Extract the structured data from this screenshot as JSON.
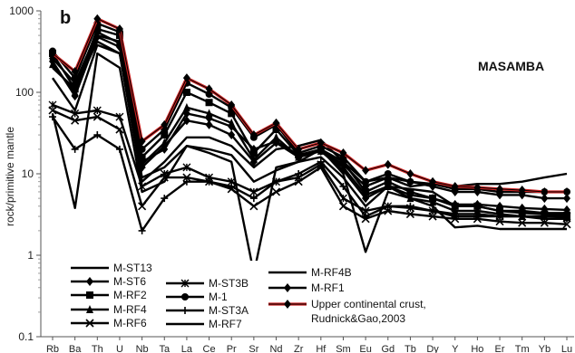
{
  "chart_data": {
    "type": "line",
    "panel_label": "b",
    "region_label": "MASAMBA",
    "ylabel": "rock/primitive mantle",
    "yscale": "log",
    "ylim": [
      0.1,
      1000
    ],
    "ytick_labels": [
      "0.1",
      "1",
      "10",
      "100",
      "1000"
    ],
    "yticks": [
      0.1,
      1,
      10,
      100,
      1000
    ],
    "categories": [
      "Rb",
      "Ba",
      "Th",
      "U",
      "Nb",
      "Ta",
      "La",
      "Ce",
      "Pr",
      "Sr",
      "Nd",
      "Zr",
      "Hf",
      "Sm",
      "Eu",
      "Gd",
      "Tb",
      "Dy",
      "Y",
      "Ho",
      "Er",
      "Tm",
      "Yb",
      "Lu"
    ],
    "series": [
      {
        "name": "M-ST13",
        "marker": "none",
        "color": "#000000",
        "values": [
          200,
          110,
          420,
          300,
          9,
          12,
          22,
          20,
          17,
          8,
          11,
          14,
          16,
          9,
          4,
          7,
          6.5,
          6,
          4,
          4,
          3.5,
          3.5,
          3.3,
          3.3
        ]
      },
      {
        "name": "M-ST6",
        "marker": "diamond",
        "color": "#000000",
        "values": [
          260,
          130,
          550,
          400,
          14,
          20,
          55,
          48,
          38,
          20,
          25,
          17,
          19,
          13,
          7,
          9,
          8,
          7,
          6,
          6,
          5.5,
          5.5,
          5,
          5
        ]
      },
      {
        "name": "M-RF2",
        "marker": "square",
        "color": "#000000",
        "values": [
          300,
          110,
          600,
          500,
          16,
          30,
          100,
          75,
          55,
          18,
          35,
          17,
          20,
          14,
          6,
          8,
          6,
          5,
          4,
          4,
          3.5,
          3.3,
          3.2,
          3.1
        ]
      },
      {
        "name": "M-RF4",
        "marker": "triangle",
        "color": "#000000",
        "values": [
          220,
          100,
          500,
          420,
          13,
          24,
          65,
          55,
          42,
          15,
          28,
          16,
          19,
          12,
          5.5,
          7,
          5,
          4.5,
          3.5,
          3.5,
          3.2,
          3,
          3,
          2.9
        ]
      },
      {
        "name": "M-RF6",
        "marker": "x",
        "color": "#000000",
        "values": [
          60,
          45,
          50,
          35,
          4,
          9,
          9,
          8,
          6.5,
          4,
          6,
          8,
          12,
          4,
          2.8,
          3.5,
          3.2,
          3,
          2.8,
          2.8,
          2.6,
          2.5,
          2.5,
          2.4
        ]
      },
      {
        "name": "M-ST3B",
        "marker": "asterisk",
        "color": "#000000",
        "values": [
          70,
          55,
          60,
          50,
          7,
          10,
          12,
          9,
          8,
          6,
          8,
          9,
          13,
          5,
          3.5,
          4,
          3.8,
          3.5,
          3.2,
          3.2,
          3,
          3,
          3,
          3
        ]
      },
      {
        "name": "M-1",
        "marker": "circle",
        "color": "#000000",
        "values": [
          320,
          150,
          700,
          550,
          20,
          35,
          130,
          95,
          65,
          28,
          40,
          18,
          22,
          16,
          8,
          10,
          8,
          7.5,
          6.5,
          6.5,
          6,
          6,
          6,
          6
        ]
      },
      {
        "name": "M-ST3A",
        "marker": "plus",
        "color": "#000000",
        "values": [
          50,
          20,
          30,
          20,
          2,
          5,
          8,
          8,
          7,
          5,
          8,
          10,
          14,
          7,
          3,
          4,
          4,
          3.5,
          3,
          3,
          3,
          3,
          2.8,
          2.8
        ]
      },
      {
        "name": "M-RF7",
        "marker": "none",
        "color": "#000000",
        "values": [
          55,
          3.8,
          300,
          200,
          6,
          8,
          22,
          18,
          14,
          0.6,
          12,
          14,
          20,
          10,
          1.1,
          6,
          5,
          4,
          2.2,
          2.3,
          2.1,
          2.1,
          2.1,
          2.1
        ]
      },
      {
        "name": "M-RF4B",
        "marker": "none",
        "color": "#000000",
        "values": [
          150,
          60,
          380,
          300,
          8,
          14,
          28,
          28,
          22,
          12,
          20,
          22,
          26,
          14,
          8,
          9,
          7,
          7.5,
          7,
          7.5,
          7.5,
          8,
          9,
          10
        ]
      },
      {
        "name": "M-RF1",
        "marker": "diamond",
        "color": "#000000",
        "values": [
          240,
          90,
          480,
          360,
          12,
          22,
          45,
          40,
          30,
          14,
          24,
          16,
          19,
          11,
          5,
          7,
          5.5,
          5,
          4.2,
          4.2,
          4,
          3.8,
          3.7,
          3.6
        ]
      },
      {
        "name": "Upper continental crust, Rudnick&Gao,2003",
        "marker": "diamond",
        "color": "#cc2222",
        "values": [
          300,
          180,
          800,
          600,
          25,
          40,
          150,
          110,
          70,
          30,
          42,
          20,
          24,
          18,
          11,
          13,
          10,
          8,
          7,
          6.8,
          6.5,
          6.3,
          6,
          6
        ]
      }
    ],
    "legend_labels": [
      "M-ST13",
      "M-ST6",
      "M-RF2",
      "M-RF4",
      "M-RF6",
      "M-ST3B",
      "M-1",
      "M-ST3A",
      "M-RF7",
      "M-RF4B",
      "M-RF1",
      "Upper continental crust,",
      "Rudnick&Gao,2003"
    ],
    "grid": false,
    "legend_position": "bottom-left"
  }
}
